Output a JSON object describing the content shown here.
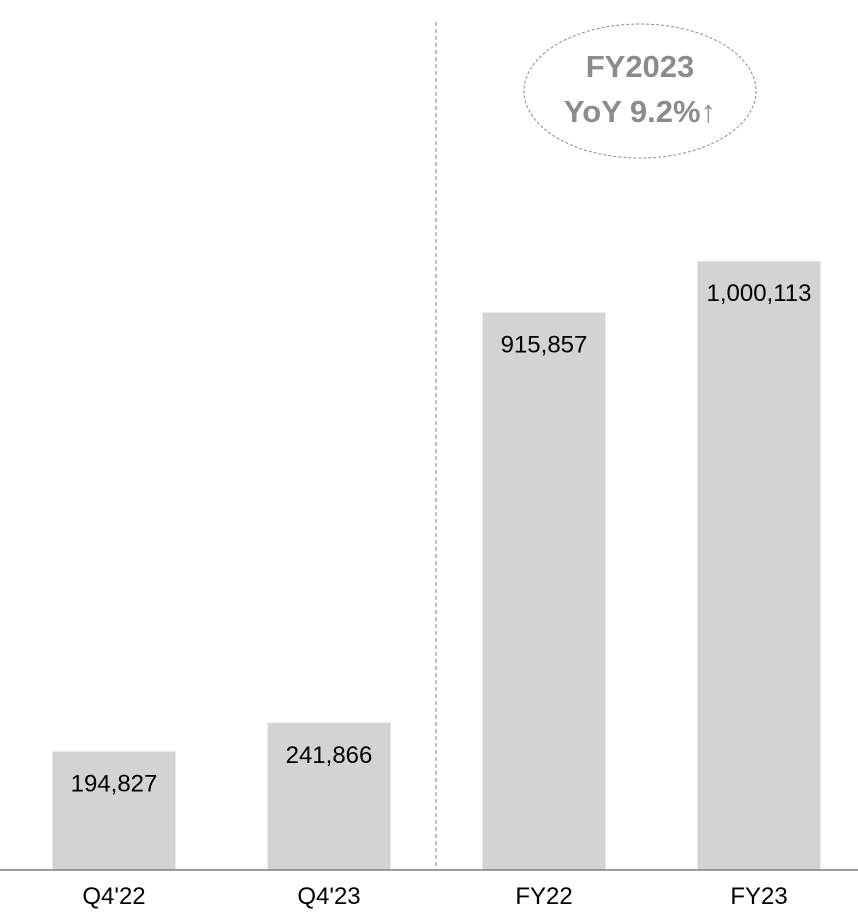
{
  "chart_data": {
    "type": "bar",
    "categories": [
      "Q4'22",
      "Q4'23",
      "FY22",
      "FY23"
    ],
    "values": [
      194827,
      241866,
      915857,
      1000113
    ],
    "value_labels": [
      "194,827",
      "241,866",
      "915,857",
      "1,000,113"
    ],
    "title": "",
    "xlabel": "",
    "ylabel": "",
    "ylim": [
      0,
      1150000
    ],
    "grid": false,
    "legend": "none",
    "separator": "dashed vertical line between Q4'23 and FY22",
    "callout": {
      "line1": "FY2023",
      "line2": "YoY 9.2%↑",
      "shape": "dashed ellipse"
    },
    "colors": {
      "bar": "#d3d3d3",
      "axis": "#7f7f7f",
      "separator": "#7f7f7f",
      "callout_text": "#8c8c8c",
      "callout_border": "#8c8c8c",
      "label": "#000000"
    }
  }
}
